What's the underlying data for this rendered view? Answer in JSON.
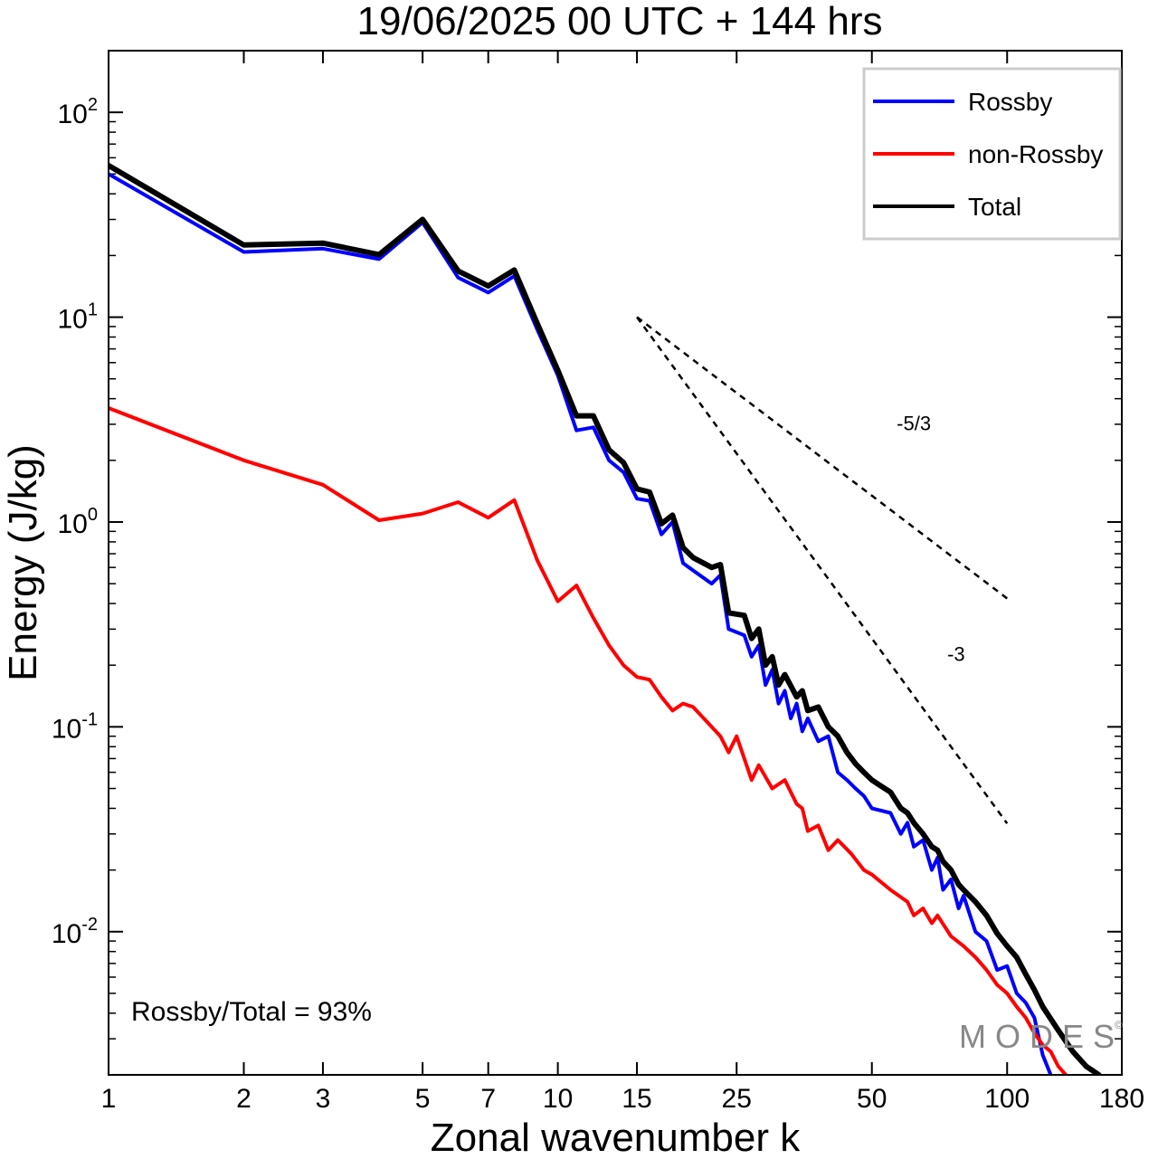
{
  "chart_data": {
    "type": "line",
    "title": "19/06/2025  00 UTC  + 144 hrs",
    "xlabel": "Zonal wavenumber k",
    "ylabel": "Energy (J/kg)",
    "xscale": "log",
    "yscale": "log",
    "xlim": [
      1,
      180
    ],
    "ylim": [
      0.002,
      200
    ],
    "x_ticks": [
      1,
      2,
      3,
      5,
      7,
      10,
      15,
      25,
      50,
      100,
      180
    ],
    "y_ticks": [
      {
        "value": 0.01,
        "base": "10",
        "exp": "-2"
      },
      {
        "value": 0.1,
        "base": "10",
        "exp": "-1"
      },
      {
        "value": 1,
        "base": "10",
        "exp": "0"
      },
      {
        "value": 10,
        "base": "10",
        "exp": "1"
      },
      {
        "value": 100,
        "base": "10",
        "exp": "2"
      }
    ],
    "legend_position": "top-right",
    "series": [
      {
        "name": "Rossby",
        "color": "#0000ff",
        "points": [
          [
            1,
            50
          ],
          [
            2,
            20.8
          ],
          [
            3,
            21.6
          ],
          [
            4,
            19.2
          ],
          [
            5,
            29
          ],
          [
            6,
            15.6
          ],
          [
            7,
            13.2
          ],
          [
            8,
            15.9
          ],
          [
            9,
            8.7
          ],
          [
            10,
            5.2
          ],
          [
            11,
            2.8
          ],
          [
            12,
            2.9
          ],
          [
            13,
            2.0
          ],
          [
            14,
            1.75
          ],
          [
            15,
            1.3
          ],
          [
            16,
            1.27
          ],
          [
            17,
            0.87
          ],
          [
            18,
            1.0
          ],
          [
            19,
            0.63
          ],
          [
            20,
            0.58
          ],
          [
            22,
            0.5
          ],
          [
            23,
            0.55
          ],
          [
            24,
            0.3
          ],
          [
            25,
            0.29
          ],
          [
            26,
            0.28
          ],
          [
            27,
            0.22
          ],
          [
            28,
            0.25
          ],
          [
            29,
            0.16
          ],
          [
            30,
            0.19
          ],
          [
            31,
            0.13
          ],
          [
            32,
            0.15
          ],
          [
            33,
            0.11
          ],
          [
            34,
            0.13
          ],
          [
            35,
            0.095
          ],
          [
            36,
            0.11
          ],
          [
            38,
            0.085
          ],
          [
            40,
            0.09
          ],
          [
            42,
            0.06
          ],
          [
            44,
            0.055
          ],
          [
            46,
            0.05
          ],
          [
            48,
            0.046
          ],
          [
            50,
            0.04
          ],
          [
            55,
            0.038
          ],
          [
            58,
            0.03
          ],
          [
            60,
            0.034
          ],
          [
            62,
            0.026
          ],
          [
            65,
            0.028
          ],
          [
            68,
            0.02
          ],
          [
            70,
            0.023
          ],
          [
            72,
            0.016
          ],
          [
            75,
            0.018
          ],
          [
            78,
            0.013
          ],
          [
            80,
            0.015
          ],
          [
            85,
            0.01
          ],
          [
            90,
            0.009
          ],
          [
            95,
            0.0065
          ],
          [
            100,
            0.0068
          ],
          [
            105,
            0.005
          ],
          [
            110,
            0.0045
          ],
          [
            115,
            0.0038
          ],
          [
            120,
            0.0025
          ],
          [
            125,
            0.002
          ]
        ]
      },
      {
        "name": "non-Rossby",
        "color": "#ff0000",
        "points": [
          [
            1,
            3.6
          ],
          [
            2,
            2.0
          ],
          [
            3,
            1.52
          ],
          [
            4,
            1.02
          ],
          [
            5,
            1.1
          ],
          [
            6,
            1.25
          ],
          [
            7,
            1.05
          ],
          [
            8,
            1.28
          ],
          [
            9,
            0.65
          ],
          [
            10,
            0.41
          ],
          [
            11,
            0.49
          ],
          [
            12,
            0.34
          ],
          [
            13,
            0.25
          ],
          [
            14,
            0.2
          ],
          [
            15,
            0.175
          ],
          [
            16,
            0.17
          ],
          [
            17,
            0.14
          ],
          [
            18,
            0.12
          ],
          [
            19,
            0.13
          ],
          [
            20,
            0.125
          ],
          [
            22,
            0.1
          ],
          [
            23,
            0.09
          ],
          [
            24,
            0.075
          ],
          [
            25,
            0.09
          ],
          [
            26,
            0.07
          ],
          [
            27,
            0.055
          ],
          [
            28,
            0.065
          ],
          [
            30,
            0.05
          ],
          [
            32,
            0.055
          ],
          [
            34,
            0.042
          ],
          [
            35,
            0.04
          ],
          [
            36,
            0.031
          ],
          [
            38,
            0.033
          ],
          [
            40,
            0.025
          ],
          [
            42,
            0.028
          ],
          [
            45,
            0.024
          ],
          [
            48,
            0.02
          ],
          [
            50,
            0.019
          ],
          [
            55,
            0.016
          ],
          [
            60,
            0.014
          ],
          [
            62,
            0.012
          ],
          [
            65,
            0.013
          ],
          [
            68,
            0.011
          ],
          [
            70,
            0.012
          ],
          [
            75,
            0.0095
          ],
          [
            80,
            0.0085
          ],
          [
            85,
            0.0075
          ],
          [
            90,
            0.0065
          ],
          [
            95,
            0.0055
          ],
          [
            100,
            0.005
          ],
          [
            105,
            0.0043
          ],
          [
            110,
            0.0038
          ],
          [
            115,
            0.0032
          ],
          [
            120,
            0.0028
          ],
          [
            125,
            0.0026
          ],
          [
            130,
            0.0022
          ],
          [
            135,
            0.002
          ]
        ]
      },
      {
        "name": "Total",
        "color": "#000000",
        "points": [
          [
            1,
            55
          ],
          [
            2,
            22.5
          ],
          [
            3,
            23
          ],
          [
            4,
            20.2
          ],
          [
            5,
            30
          ],
          [
            6,
            16.8
          ],
          [
            7,
            14.2
          ],
          [
            8,
            17
          ],
          [
            9,
            9.3
          ],
          [
            10,
            5.5
          ],
          [
            11,
            3.3
          ],
          [
            12,
            3.3
          ],
          [
            13,
            2.25
          ],
          [
            14,
            1.95
          ],
          [
            15,
            1.45
          ],
          [
            16,
            1.4
          ],
          [
            17,
            0.98
          ],
          [
            18,
            1.08
          ],
          [
            19,
            0.75
          ],
          [
            20,
            0.67
          ],
          [
            22,
            0.6
          ],
          [
            23,
            0.62
          ],
          [
            24,
            0.36
          ],
          [
            25,
            0.355
          ],
          [
            26,
            0.35
          ],
          [
            27,
            0.27
          ],
          [
            28,
            0.3
          ],
          [
            29,
            0.2
          ],
          [
            30,
            0.22
          ],
          [
            31,
            0.16
          ],
          [
            32,
            0.18
          ],
          [
            34,
            0.14
          ],
          [
            35,
            0.15
          ],
          [
            36,
            0.12
          ],
          [
            38,
            0.125
          ],
          [
            40,
            0.1
          ],
          [
            42,
            0.09
          ],
          [
            44,
            0.075
          ],
          [
            46,
            0.066
          ],
          [
            48,
            0.06
          ],
          [
            50,
            0.055
          ],
          [
            52,
            0.052
          ],
          [
            55,
            0.048
          ],
          [
            58,
            0.04
          ],
          [
            60,
            0.038
          ],
          [
            62,
            0.034
          ],
          [
            65,
            0.03
          ],
          [
            68,
            0.026
          ],
          [
            70,
            0.025
          ],
          [
            72,
            0.022
          ],
          [
            75,
            0.02
          ],
          [
            78,
            0.017
          ],
          [
            80,
            0.016
          ],
          [
            85,
            0.014
          ],
          [
            90,
            0.012
          ],
          [
            95,
            0.0098
          ],
          [
            100,
            0.0085
          ],
          [
            105,
            0.0075
          ],
          [
            110,
            0.0062
          ],
          [
            115,
            0.0052
          ],
          [
            120,
            0.0043
          ],
          [
            130,
            0.0033
          ],
          [
            140,
            0.0026
          ],
          [
            150,
            0.0022
          ],
          [
            160,
            0.002
          ]
        ]
      }
    ],
    "reference_lines": [
      {
        "label": "-5/3",
        "slope": -1.6667,
        "x0": 15,
        "y0": 10,
        "x1": 100,
        "label_x": 62,
        "label_y": 2.8
      },
      {
        "label": "-3",
        "slope": -3,
        "x0": 15,
        "y0": 10,
        "x1": 100,
        "label_x": 77,
        "label_y": 0.21
      }
    ],
    "annotation": "Rossby/Total = 93%",
    "watermark": "MODES",
    "watermark_mark": "©"
  }
}
